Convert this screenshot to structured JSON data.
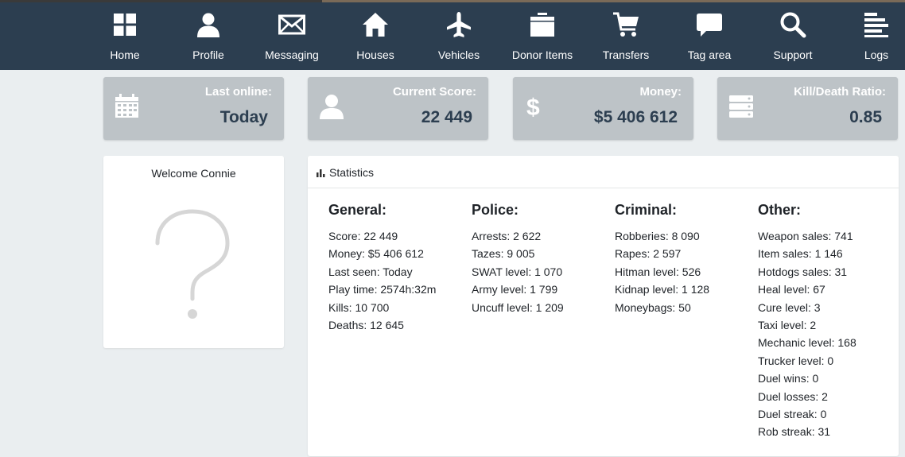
{
  "nav": {
    "items": [
      {
        "label": "Home",
        "icon": "grid-icon"
      },
      {
        "label": "Profile",
        "icon": "user-icon"
      },
      {
        "label": "Messaging",
        "icon": "envelope-icon"
      },
      {
        "label": "Houses",
        "icon": "house-icon"
      },
      {
        "label": "Vehicles",
        "icon": "airplane-icon"
      },
      {
        "label": "Donor Items",
        "icon": "folder-icon"
      },
      {
        "label": "Transfers",
        "icon": "cart-icon"
      },
      {
        "label": "Tag area",
        "icon": "speech-bubble-icon"
      },
      {
        "label": "Support",
        "icon": "search-icon"
      },
      {
        "label": "Logs",
        "icon": "list-icon"
      }
    ]
  },
  "cards": [
    {
      "title": "Last online:",
      "value": "Today",
      "icon": "calendar-icon"
    },
    {
      "title": "Current Score:",
      "value": "22 449",
      "icon": "user-icon"
    },
    {
      "title": "Money:",
      "value": "$5 406 612",
      "icon": "dollar-icon"
    },
    {
      "title": "Kill/Death Ratio:",
      "value": "0.85",
      "icon": "server-icon"
    }
  ],
  "welcome": {
    "text": "Welcome Connie",
    "avatar_icon": "question-mark-icon"
  },
  "statistics": {
    "title": "Statistics",
    "columns": [
      {
        "title": "General:",
        "items": [
          "Score: 22 449",
          "Money: $5 406 612",
          "Last seen: Today",
          "Play time: 2574h:32m",
          "Kills: 10 700",
          "Deaths: 12 645"
        ]
      },
      {
        "title": "Police:",
        "items": [
          "Arrests: 2 622",
          "Tazes: 9 005",
          "SWAT level: 1 070",
          "Army level: 1 799",
          "Uncuff level: 1 209"
        ]
      },
      {
        "title": "Criminal:",
        "items": [
          "Robberies: 8 090",
          "Rapes: 2 597",
          "Hitman level: 526",
          "Kidnap level: 1 128",
          "Moneybags: 50"
        ]
      },
      {
        "title": "Other:",
        "items": [
          "Weapon sales: 741",
          "Item sales: 1 146",
          "Hotdogs sales: 31",
          "Heal level: 67",
          "Cure level: 3",
          "Taxi level: 2",
          "Mechanic level: 168",
          "Trucker level: 0",
          "Duel wins: 0",
          "Duel losses: 2",
          "Duel streak: 0",
          "Rob streak: 31"
        ]
      }
    ]
  },
  "colors": {
    "nav_bg": "#2c3e50",
    "card_bg": "#bdc3c7",
    "card_value": "#2c3e50",
    "page_bg": "#eaeef0"
  }
}
